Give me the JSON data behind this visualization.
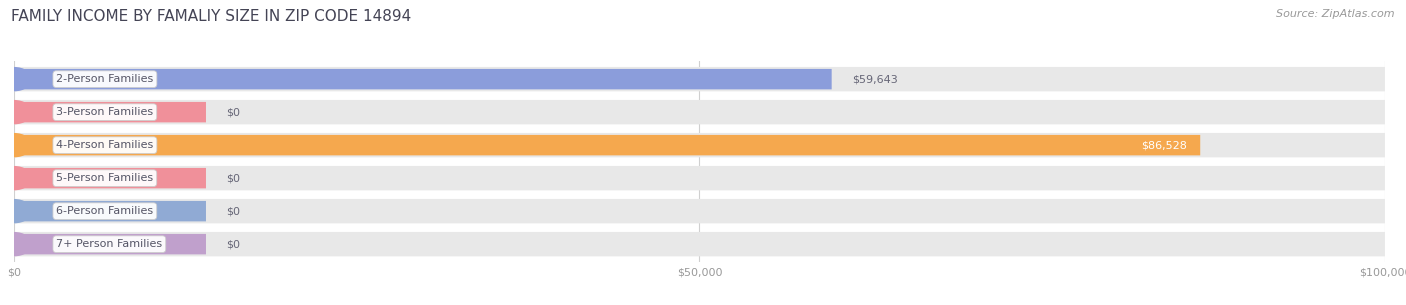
{
  "title": "FAMILY INCOME BY FAMALIY SIZE IN ZIP CODE 14894",
  "source": "Source: ZipAtlas.com",
  "categories": [
    "2-Person Families",
    "3-Person Families",
    "4-Person Families",
    "5-Person Families",
    "6-Person Families",
    "7+ Person Families"
  ],
  "values": [
    59643,
    0,
    86528,
    0,
    0,
    0
  ],
  "bar_colors": [
    "#8b9ddb",
    "#f0909a",
    "#f5a84e",
    "#f0909a",
    "#90aad4",
    "#c0a0cc"
  ],
  "dot_colors": [
    "#8b9ddb",
    "#f0909a",
    "#f5a84e",
    "#f0909a",
    "#90aad4",
    "#c0a0cc"
  ],
  "value_labels": [
    "$59,643",
    "$0",
    "$86,528",
    "$0",
    "$0",
    "$0"
  ],
  "value_inside": [
    false,
    false,
    true,
    false,
    false,
    false
  ],
  "xlim": [
    0,
    100000
  ],
  "xticks": [
    0,
    50000,
    100000
  ],
  "xtick_labels": [
    "$0",
    "$50,000",
    "$100,000"
  ],
  "bg_color": "#ffffff",
  "bar_bg_color": "#e8e8e8",
  "grid_color": "#d0d0d0",
  "title_color": "#444455",
  "source_color": "#999999",
  "label_text_color": "#555566",
  "value_outside_color": "#666677",
  "value_inside_color": "#ffffff",
  "title_fontsize": 11,
  "source_fontsize": 8,
  "label_fontsize": 8,
  "value_fontsize": 8,
  "tick_fontsize": 8
}
